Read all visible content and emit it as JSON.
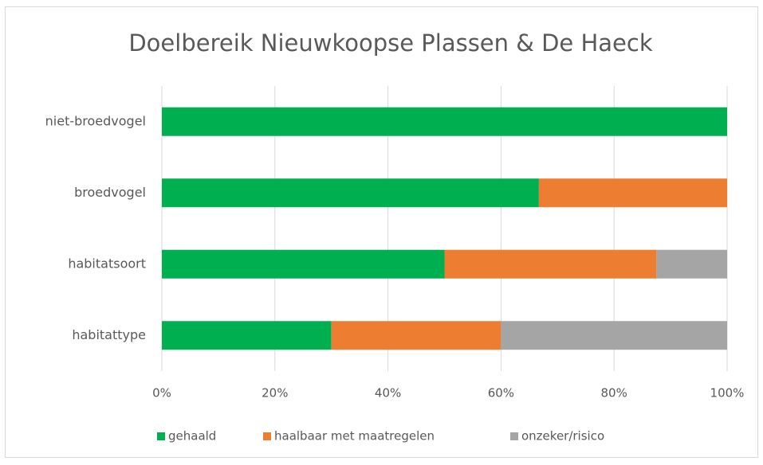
{
  "chart_data": {
    "type": "stacked-barh",
    "title": "Doelbereik Nieuwkoopse Plassen & De Haeck",
    "categories": [
      "niet-broedvogel",
      "broedvogel",
      "habitatsoort",
      "habitattype"
    ],
    "series": [
      {
        "name": "gehaald",
        "color": "#00b050",
        "values": [
          100,
          66.7,
          50,
          30
        ]
      },
      {
        "name": "haalbaar met maatregelen",
        "color": "#ed7d31",
        "values": [
          0,
          33.3,
          37.5,
          30
        ]
      },
      {
        "name": "onzeker/risico",
        "color": "#a5a5a5",
        "values": [
          0,
          0,
          12.5,
          40
        ]
      }
    ],
    "xlim": [
      0,
      100
    ],
    "xticks": [
      {
        "value": 0,
        "label": "0%"
      },
      {
        "value": 20,
        "label": "20%"
      },
      {
        "value": 40,
        "label": "40%"
      },
      {
        "value": 60,
        "label": "60%"
      },
      {
        "value": 80,
        "label": "80%"
      },
      {
        "value": 100,
        "label": "100%"
      }
    ],
    "grid": true,
    "legend": "bottom"
  }
}
